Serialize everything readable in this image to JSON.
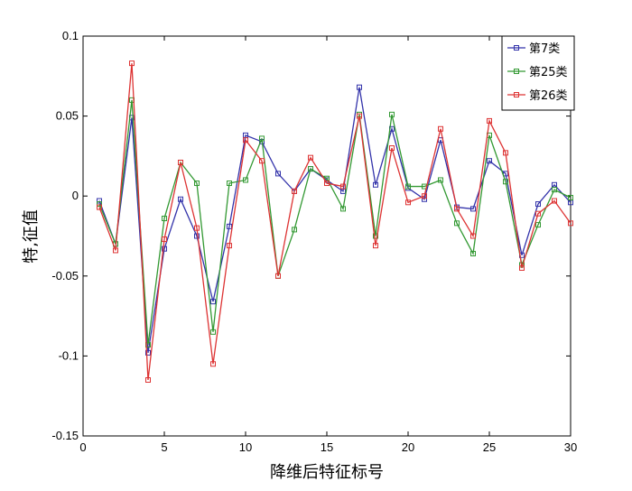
{
  "chart_data": {
    "type": "line",
    "xlabel": "降维后特征标号",
    "ylabel": "特,征值",
    "xlim": [
      0,
      30
    ],
    "ylim": [
      -0.15,
      0.1
    ],
    "xticks": [
      0,
      5,
      10,
      15,
      20,
      25,
      30
    ],
    "yticks": [
      -0.15,
      -0.1,
      -0.05,
      0,
      0.05,
      0.1
    ],
    "xtick_labels": [
      "0",
      "5",
      "10",
      "15",
      "20",
      "25",
      "30"
    ],
    "ytick_labels": [
      "-0.15",
      "-0.1",
      "-0.05",
      "0",
      "0.05",
      "0.1"
    ],
    "grid": false,
    "legend_position": "top-right",
    "marker": "square",
    "x": [
      1,
      2,
      3,
      4,
      5,
      6,
      7,
      8,
      9,
      10,
      11,
      12,
      13,
      14,
      15,
      16,
      17,
      18,
      19,
      20,
      21,
      22,
      23,
      24,
      25,
      26,
      27,
      28,
      29,
      30
    ],
    "series": [
      {
        "name": "第7类",
        "color": "#3333aa",
        "values": [
          -0.003,
          -0.03,
          0.049,
          -0.098,
          -0.033,
          -0.002,
          -0.025,
          -0.066,
          -0.019,
          0.038,
          0.034,
          0.014,
          0.003,
          0.017,
          0.01,
          0.003,
          0.068,
          0.007,
          0.042,
          0.005,
          -0.002,
          0.035,
          -0.007,
          -0.008,
          0.022,
          0.014,
          -0.037,
          -0.005,
          0.007,
          -0.004
        ]
      },
      {
        "name": "第25类",
        "color": "#339933",
        "values": [
          -0.005,
          -0.03,
          0.06,
          -0.093,
          -0.014,
          0.021,
          0.008,
          -0.085,
          0.008,
          0.01,
          0.036,
          -0.05,
          -0.021,
          0.017,
          0.011,
          -0.008,
          0.051,
          -0.025,
          0.051,
          0.006,
          0.006,
          0.01,
          -0.017,
          -0.036,
          0.038,
          0.009,
          -0.043,
          -0.018,
          0.004,
          -0.001
        ]
      },
      {
        "name": "第26类",
        "color": "#dd3333",
        "values": [
          -0.007,
          -0.034,
          0.083,
          -0.115,
          -0.027,
          0.021,
          -0.02,
          -0.105,
          -0.031,
          0.035,
          0.022,
          -0.05,
          0.003,
          0.024,
          0.008,
          0.006,
          0.05,
          -0.031,
          0.03,
          -0.004,
          0.0,
          0.042,
          -0.008,
          -0.025,
          0.047,
          0.027,
          -0.045,
          -0.011,
          -0.003,
          -0.017
        ]
      }
    ]
  }
}
